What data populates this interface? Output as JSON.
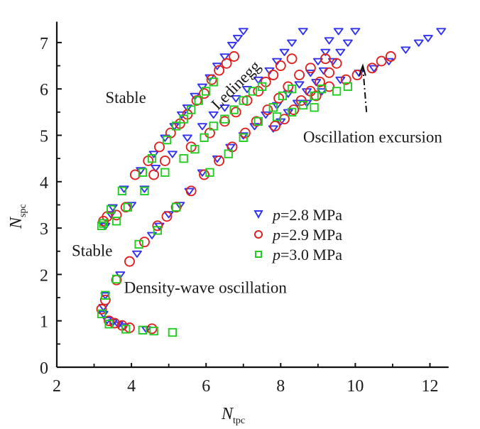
{
  "chart_data": {
    "type": "scatter",
    "title": "",
    "xlabel": "N",
    "xlabel_sub": "tpc",
    "ylabel": "N",
    "ylabel_sub": "spc",
    "xlim": [
      2,
      12.5
    ],
    "ylim": [
      0,
      7.45
    ],
    "xticks": [
      2,
      4,
      6,
      8,
      10,
      12
    ],
    "xticks_minor": [
      3,
      5,
      7,
      9,
      11
    ],
    "yticks": [
      0,
      1,
      2,
      3,
      4,
      5,
      6,
      7
    ],
    "yticks_minor": [
      0.5,
      1.5,
      2.5,
      3.5,
      4.5,
      5.5,
      6.5
    ],
    "grid": false,
    "legend_position": "center-right",
    "legend": [
      {
        "name_prefix": "p",
        "name_suffix": "=2.8 MPa",
        "marker": "triangle-down",
        "color": "#3333ee"
      },
      {
        "name_prefix": "p",
        "name_suffix": "=2.9 MPa",
        "marker": "circle",
        "color": "#dd2222"
      },
      {
        "name_prefix": "p",
        "name_suffix": "=3.0 MPa",
        "marker": "square",
        "color": "#22cc22"
      }
    ],
    "annotations": [
      {
        "text": "Stable",
        "x": 3.3,
        "y": 5.7
      },
      {
        "text": "Stable",
        "x": 2.4,
        "y": 2.4
      },
      {
        "text": "Ledinegg",
        "x": 6.9,
        "y": 6.0,
        "rotation": -45
      },
      {
        "text": "Oscillation excursion",
        "x": 8.6,
        "y": 4.85
      },
      {
        "text": "Density-wave oscillation",
        "x": 3.8,
        "y": 1.6
      }
    ],
    "arrow": {
      "from": [
        10.3,
        5.5
      ],
      "to": [
        10.2,
        6.5
      ],
      "style": "dash-dot"
    },
    "series": [
      {
        "name": "p=2.8 MPa",
        "marker": "triangle-down",
        "color": "#3333ee",
        "points": [
          [
            3.3,
            1.55
          ],
          [
            3.25,
            1.3
          ],
          [
            3.25,
            1.15
          ],
          [
            3.35,
            1.02
          ],
          [
            3.5,
            0.97
          ],
          [
            3.65,
            0.92
          ],
          [
            3.8,
            0.88
          ],
          [
            4.4,
            0.82
          ],
          [
            3.7,
            2.0
          ],
          [
            4.15,
            2.45
          ],
          [
            4.55,
            2.85
          ],
          [
            4.75,
            3.05
          ],
          [
            5.0,
            3.3
          ],
          [
            5.3,
            3.5
          ],
          [
            3.3,
            3.05
          ],
          [
            3.45,
            3.3
          ],
          [
            3.5,
            3.45
          ],
          [
            3.8,
            3.85
          ],
          [
            4.25,
            4.25
          ],
          [
            4.6,
            4.6
          ],
          [
            4.9,
            4.95
          ],
          [
            5.15,
            5.2
          ],
          [
            5.35,
            5.45
          ],
          [
            5.5,
            5.6
          ],
          [
            5.7,
            5.85
          ],
          [
            5.9,
            6.05
          ],
          [
            6.1,
            6.25
          ],
          [
            6.3,
            6.5
          ],
          [
            6.5,
            6.7
          ],
          [
            6.7,
            6.95
          ],
          [
            6.85,
            7.1
          ],
          [
            7.0,
            7.25
          ],
          [
            4.0,
            3.5
          ],
          [
            4.35,
            3.85
          ],
          [
            4.65,
            4.3
          ],
          [
            5.1,
            4.6
          ],
          [
            5.5,
            4.95
          ],
          [
            5.9,
            5.2
          ],
          [
            6.2,
            5.45
          ],
          [
            6.5,
            5.6
          ],
          [
            6.8,
            5.8
          ],
          [
            7.1,
            6.0
          ],
          [
            7.4,
            6.2
          ],
          [
            7.7,
            6.4
          ],
          [
            7.9,
            6.6
          ],
          [
            8.1,
            6.8
          ],
          [
            8.3,
            7.0
          ],
          [
            8.6,
            7.25
          ],
          [
            5.55,
            3.8
          ],
          [
            5.9,
            4.2
          ],
          [
            6.3,
            4.5
          ],
          [
            6.65,
            4.75
          ],
          [
            7.0,
            5.0
          ],
          [
            7.3,
            5.2
          ],
          [
            7.6,
            5.45
          ],
          [
            7.9,
            5.65
          ],
          [
            8.2,
            5.9
          ],
          [
            8.5,
            6.1
          ],
          [
            8.8,
            6.35
          ],
          [
            9.0,
            6.6
          ],
          [
            9.2,
            6.8
          ],
          [
            9.3,
            7.05
          ],
          [
            9.55,
            7.25
          ],
          [
            7.8,
            5.15
          ],
          [
            8.0,
            5.3
          ],
          [
            8.2,
            5.5
          ],
          [
            8.45,
            5.7
          ],
          [
            8.7,
            5.95
          ],
          [
            8.95,
            6.15
          ],
          [
            9.15,
            6.4
          ],
          [
            9.4,
            6.6
          ],
          [
            9.6,
            6.8
          ],
          [
            9.8,
            7.0
          ],
          [
            10.0,
            7.25
          ],
          [
            8.7,
            5.7
          ],
          [
            9.1,
            5.95
          ],
          [
            9.6,
            6.2
          ],
          [
            10.1,
            6.35
          ],
          [
            10.5,
            6.45
          ],
          [
            10.9,
            6.6
          ],
          [
            11.35,
            6.85
          ],
          [
            11.7,
            7.0
          ],
          [
            11.95,
            7.1
          ],
          [
            12.3,
            7.25
          ]
        ]
      },
      {
        "name": "p=2.9 MPa",
        "marker": "circle",
        "color": "#dd2222",
        "points": [
          [
            3.3,
            1.45
          ],
          [
            3.2,
            1.25
          ],
          [
            3.4,
            1.0
          ],
          [
            3.55,
            0.95
          ],
          [
            3.75,
            0.9
          ],
          [
            3.95,
            0.85
          ],
          [
            4.55,
            0.83
          ],
          [
            3.6,
            1.88
          ],
          [
            3.95,
            2.28
          ],
          [
            4.35,
            2.7
          ],
          [
            4.7,
            3.05
          ],
          [
            4.95,
            3.25
          ],
          [
            5.2,
            3.45
          ],
          [
            3.25,
            3.15
          ],
          [
            3.35,
            3.25
          ],
          [
            3.6,
            3.28
          ],
          [
            3.85,
            3.45
          ],
          [
            4.1,
            4.15
          ],
          [
            4.45,
            4.45
          ],
          [
            4.75,
            4.75
          ],
          [
            5.05,
            5.05
          ],
          [
            5.3,
            5.25
          ],
          [
            5.5,
            5.45
          ],
          [
            5.75,
            5.75
          ],
          [
            5.95,
            5.9
          ],
          [
            6.15,
            6.2
          ],
          [
            6.35,
            6.4
          ],
          [
            6.55,
            6.55
          ],
          [
            6.75,
            6.7
          ],
          [
            4.6,
            4.15
          ],
          [
            4.9,
            4.45
          ],
          [
            5.6,
            4.75
          ],
          [
            6.1,
            5.05
          ],
          [
            6.5,
            5.3
          ],
          [
            6.8,
            5.5
          ],
          [
            7.1,
            5.75
          ],
          [
            7.4,
            5.95
          ],
          [
            7.6,
            6.15
          ],
          [
            7.8,
            6.3
          ],
          [
            8.0,
            6.5
          ],
          [
            8.3,
            6.65
          ],
          [
            5.6,
            3.8
          ],
          [
            5.95,
            4.15
          ],
          [
            6.35,
            4.45
          ],
          [
            6.7,
            4.75
          ],
          [
            7.05,
            5.05
          ],
          [
            7.35,
            5.3
          ],
          [
            7.65,
            5.55
          ],
          [
            7.95,
            5.8
          ],
          [
            8.2,
            6.05
          ],
          [
            8.5,
            6.3
          ],
          [
            8.8,
            6.45
          ],
          [
            9.2,
            6.65
          ],
          [
            7.85,
            5.2
          ],
          [
            8.1,
            5.35
          ],
          [
            8.35,
            5.55
          ],
          [
            8.55,
            5.75
          ],
          [
            8.8,
            5.95
          ],
          [
            9.05,
            6.15
          ],
          [
            9.3,
            6.35
          ],
          [
            9.5,
            6.55
          ],
          [
            8.95,
            5.85
          ],
          [
            9.3,
            6.05
          ],
          [
            9.75,
            6.2
          ],
          [
            10.05,
            6.3
          ],
          [
            10.45,
            6.45
          ],
          [
            10.7,
            6.6
          ],
          [
            10.95,
            6.7
          ]
        ]
      },
      {
        "name": "p=3.0 MPa",
        "marker": "square",
        "color": "#22cc22",
        "points": [
          [
            3.3,
            1.55
          ],
          [
            3.2,
            1.15
          ],
          [
            3.4,
            0.93
          ],
          [
            3.85,
            0.82
          ],
          [
            4.3,
            0.8
          ],
          [
            4.6,
            0.78
          ],
          [
            5.1,
            0.75
          ],
          [
            3.6,
            1.9
          ],
          [
            4.2,
            2.65
          ],
          [
            4.7,
            2.95
          ],
          [
            5.2,
            3.45
          ],
          [
            3.2,
            3.05
          ],
          [
            3.25,
            3.1
          ],
          [
            3.6,
            3.15
          ],
          [
            3.45,
            3.4
          ],
          [
            3.9,
            3.45
          ],
          [
            3.75,
            3.8
          ],
          [
            4.3,
            4.2
          ],
          [
            4.55,
            4.5
          ],
          [
            4.95,
            4.9
          ],
          [
            5.2,
            5.2
          ],
          [
            5.4,
            5.35
          ],
          [
            5.6,
            5.55
          ],
          [
            5.8,
            5.75
          ],
          [
            6.0,
            5.95
          ],
          [
            6.2,
            6.15
          ],
          [
            4.35,
            3.8
          ],
          [
            4.9,
            4.2
          ],
          [
            5.4,
            4.5
          ],
          [
            5.7,
            4.7
          ],
          [
            5.95,
            4.95
          ],
          [
            6.2,
            5.2
          ],
          [
            6.5,
            5.35
          ],
          [
            6.75,
            5.55
          ],
          [
            7.0,
            5.75
          ],
          [
            7.25,
            5.95
          ],
          [
            7.5,
            6.05
          ],
          [
            6.1,
            4.2
          ],
          [
            6.6,
            4.6
          ],
          [
            7.0,
            4.95
          ],
          [
            7.4,
            5.3
          ],
          [
            7.8,
            5.6
          ],
          [
            8.05,
            5.85
          ],
          [
            8.3,
            6.0
          ],
          [
            7.9,
            5.4
          ],
          [
            8.3,
            5.5
          ],
          [
            8.6,
            5.65
          ],
          [
            8.9,
            5.85
          ],
          [
            9.1,
            6.0
          ],
          [
            8.9,
            5.6
          ],
          [
            9.5,
            5.95
          ],
          [
            9.8,
            6.05
          ]
        ]
      }
    ]
  }
}
